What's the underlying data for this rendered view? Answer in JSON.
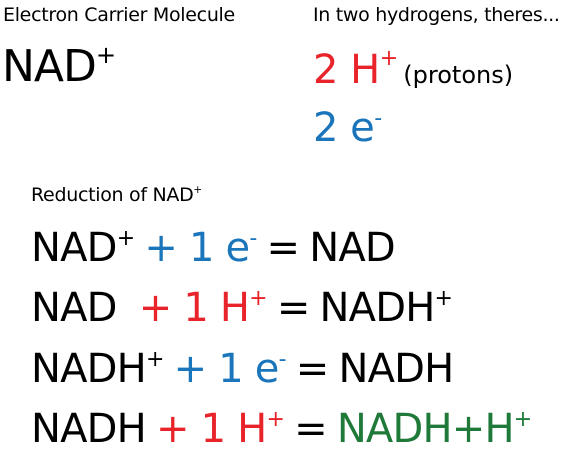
{
  "colors": {
    "proton": "#e8232a",
    "electron": "#1a75bb",
    "product": "#1f7a3a",
    "text": "#000000"
  },
  "carrier": {
    "heading": "Electron Carrier Molecule",
    "molecule_base": "NAD",
    "molecule_sup": "+"
  },
  "hydrogens": {
    "heading": "In two hydrogens, theres...",
    "protons_count": "2 H",
    "protons_sup": "+",
    "protons_note": "(protons)",
    "electrons_count": "2 e",
    "electrons_sup": "-"
  },
  "reduction": {
    "heading_base": "Reduction of NAD",
    "heading_sup": "+",
    "equations": [
      {
        "lhs": "NAD",
        "lhs_sup": "+",
        "add": "+ 1 e",
        "add_sup": "-",
        "equals": "=",
        "rhs": "NAD",
        "rhs_sup": ""
      },
      {
        "lhs": "NAD",
        "lhs_sup": "",
        "add": "+ 1 H",
        "add_sup": "+",
        "equals": "=",
        "rhs": "NADH",
        "rhs_sup": "+"
      },
      {
        "lhs": "NADH",
        "lhs_sup": "+",
        "add": "+ 1 e",
        "add_sup": "-",
        "equals": "=",
        "rhs": "NADH",
        "rhs_sup": ""
      },
      {
        "lhs": "NADH",
        "lhs_sup": "",
        "add": "+ 1 H",
        "add_sup": "+",
        "equals": "=",
        "rhs": "NADH+H",
        "rhs_sup": "+"
      }
    ]
  }
}
